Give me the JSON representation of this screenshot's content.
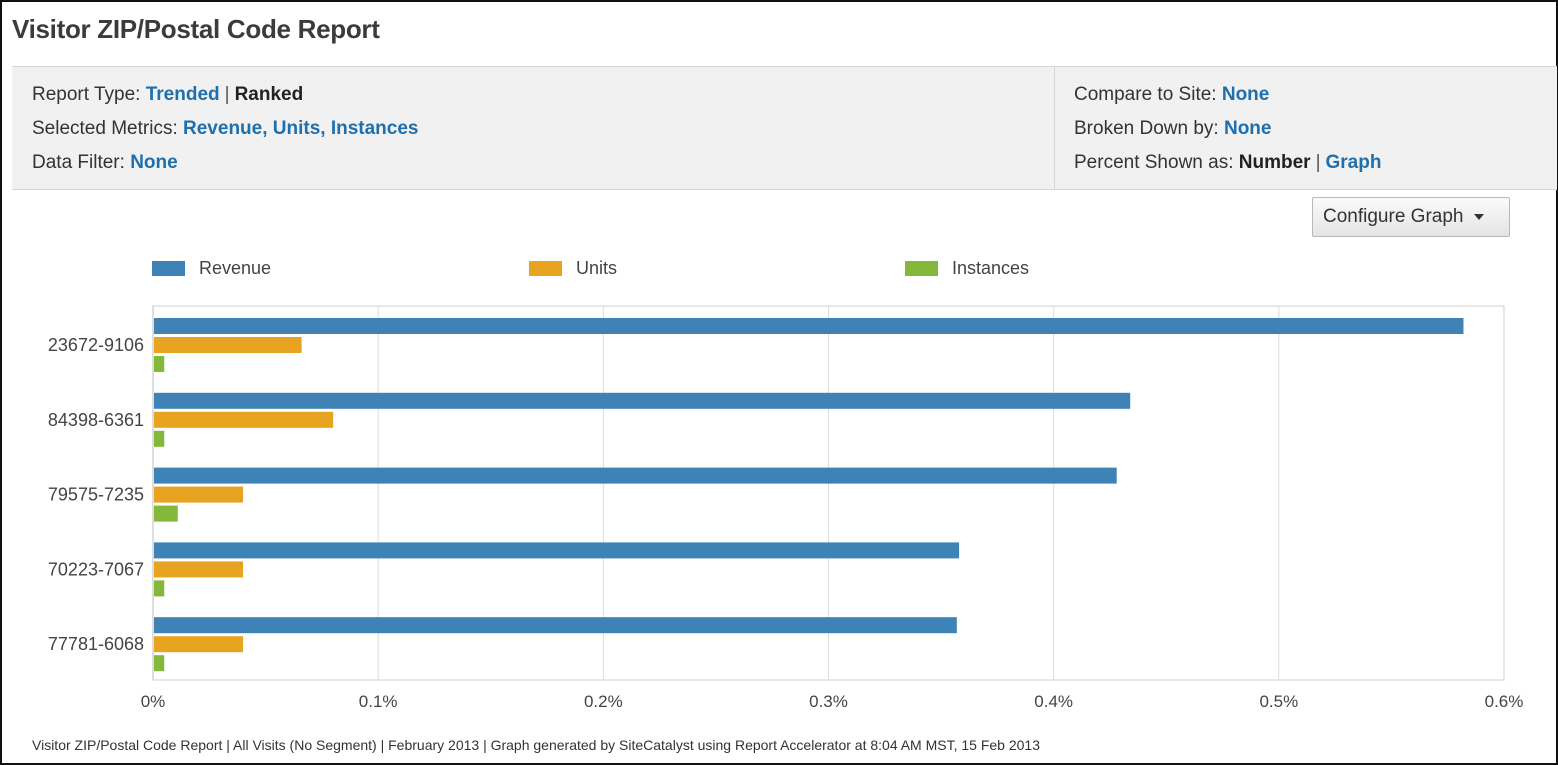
{
  "title": "Visitor ZIP/Postal Code Report",
  "info": {
    "report_type_label": "Report Type:",
    "report_type_trended": "Trended",
    "separator": "|",
    "report_type_ranked": "Ranked",
    "metrics_label": "Selected Metrics:",
    "metrics_value": "Revenue, Units, Instances",
    "filter_label": "Data Filter:",
    "filter_value": "None",
    "compare_label": "Compare to Site:",
    "compare_value": "None",
    "broken_label": "Broken Down by:",
    "broken_value": "None",
    "percent_label": "Percent Shown as:",
    "percent_number": "Number",
    "percent_graph": "Graph"
  },
  "configure_button": "Configure Graph",
  "footer": "Visitor ZIP/Postal Code Report | All Visits (No Segment) | February 2013 | Graph generated by SiteCatalyst using Report Accelerator at  8:04 AM MST, 15 Feb 2013",
  "colors": {
    "revenue": "#3f83b6",
    "units": "#e8a320",
    "instances": "#84b83a",
    "link": "#1f6fad",
    "grid": "#dcdcdc"
  },
  "chart_data": {
    "type": "bar",
    "orientation": "horizontal",
    "categories": [
      "23672-9106",
      "84398-6361",
      "79575-7235",
      "70223-7067",
      "77781-6068"
    ],
    "series": [
      {
        "name": "Revenue",
        "values": [
          0.582,
          0.434,
          0.428,
          0.358,
          0.357
        ]
      },
      {
        "name": "Units",
        "values": [
          0.066,
          0.08,
          0.04,
          0.04,
          0.04
        ]
      },
      {
        "name": "Instances",
        "values": [
          0.005,
          0.005,
          0.011,
          0.005,
          0.005
        ]
      }
    ],
    "xlim": [
      0,
      0.6
    ],
    "x_ticks": [
      0,
      0.1,
      0.2,
      0.3,
      0.4,
      0.5,
      0.6
    ],
    "x_tick_labels": [
      "0%",
      "0.1%",
      "0.2%",
      "0.3%",
      "0.4%",
      "0.5%",
      "0.6%"
    ],
    "grid": true,
    "legend": "top"
  }
}
